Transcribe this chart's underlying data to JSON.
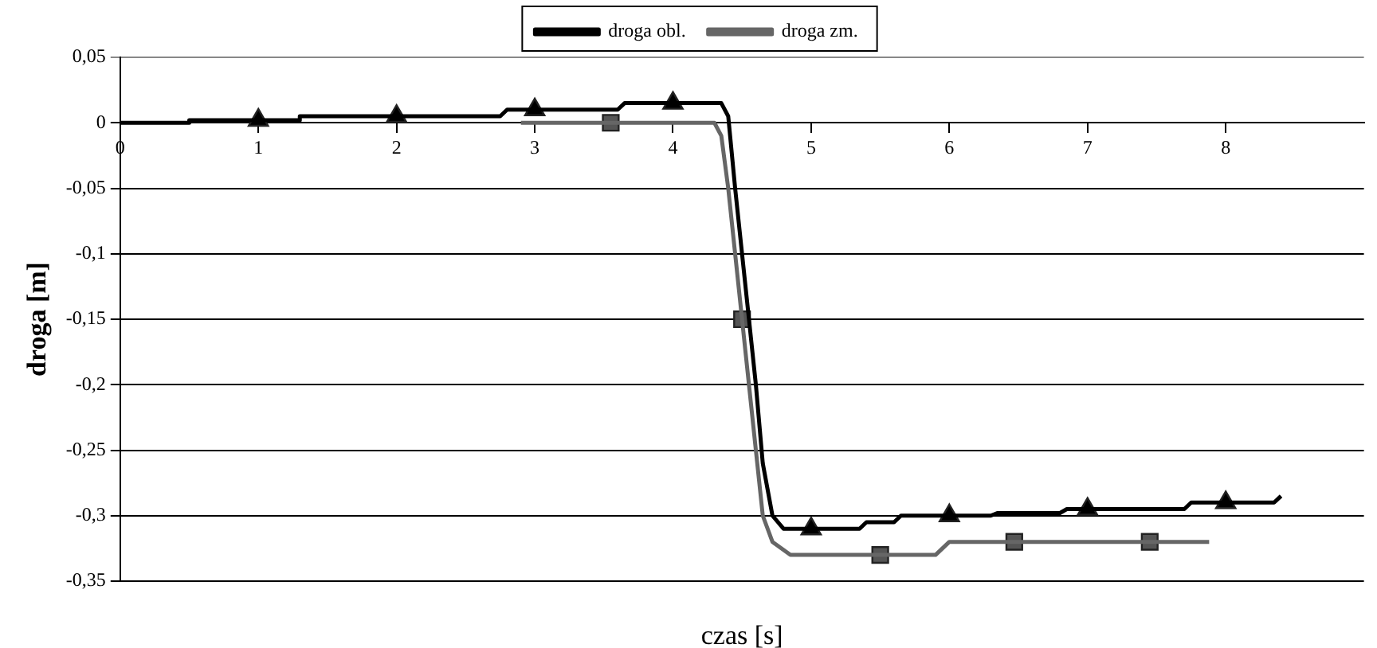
{
  "chart_data": {
    "type": "line",
    "xlabel": "czas [s]",
    "ylabel": "droga [m]",
    "xlim": [
      0,
      9
    ],
    "xticks": [
      0,
      1,
      2,
      3,
      4,
      5,
      6,
      7,
      8
    ],
    "ylim": [
      -0.35,
      0.05
    ],
    "yticks": [
      {
        "value": 0.05,
        "label": "0,05"
      },
      {
        "value": 0,
        "label": "0"
      },
      {
        "value": -0.05,
        "label": "-0,05"
      },
      {
        "value": -0.1,
        "label": "-0,1"
      },
      {
        "value": -0.15,
        "label": "-0,15"
      },
      {
        "value": -0.2,
        "label": "-0,2"
      },
      {
        "value": -0.25,
        "label": "-0,25"
      },
      {
        "value": -0.3,
        "label": "-0,3"
      },
      {
        "value": -0.35,
        "label": "-0,35"
      }
    ],
    "grid": "y",
    "legend": "top",
    "marker": "none",
    "line_style": "solid",
    "series": [
      {
        "name": "droga obl.",
        "color": "#000000",
        "x": [
          0,
          0.5,
          0.5,
          1.3,
          1.3,
          2.75,
          2.8,
          3.6,
          3.65,
          4.35,
          4.4,
          4.45,
          4.55,
          4.6,
          4.65,
          4.72,
          4.8,
          5.35,
          5.4,
          5.6,
          5.65,
          6.3,
          6.35,
          6.8,
          6.85,
          7.7,
          7.75,
          8.35,
          8.4
        ],
        "values": [
          0,
          0,
          0.002,
          0.002,
          0.005,
          0.005,
          0.01,
          0.01,
          0.015,
          0.015,
          0.005,
          -0.05,
          -0.15,
          -0.2,
          -0.26,
          -0.3,
          -0.31,
          -0.31,
          -0.305,
          -0.305,
          -0.3,
          -0.3,
          -0.298,
          -0.298,
          -0.295,
          -0.295,
          -0.29,
          -0.29,
          -0.285
        ]
      },
      {
        "type": "scatter",
        "marker": "triangle",
        "color": "#000000",
        "x": [
          1,
          2,
          3,
          4,
          5,
          6,
          7,
          8
        ],
        "values": [
          0.002,
          0.005,
          0.01,
          0.015,
          -0.31,
          -0.3,
          -0.295,
          -0.29
        ]
      },
      {
        "name": "droga zm.",
        "color": "#666666",
        "x": [
          2.9,
          4.3,
          4.35,
          4.4,
          4.5,
          4.6,
          4.65,
          4.72,
          4.85,
          5.9,
          6,
          7.88
        ],
        "values": [
          0,
          0,
          -0.01,
          -0.05,
          -0.15,
          -0.25,
          -0.3,
          -0.32,
          -0.33,
          -0.33,
          -0.32,
          -0.32
        ]
      },
      {
        "type": "scatter",
        "marker": "square",
        "color": "#555555",
        "x": [
          3.55,
          4.5,
          5.5,
          6.47,
          7.45
        ],
        "values": [
          0,
          -0.15,
          -0.33,
          -0.32,
          -0.32
        ]
      }
    ]
  }
}
